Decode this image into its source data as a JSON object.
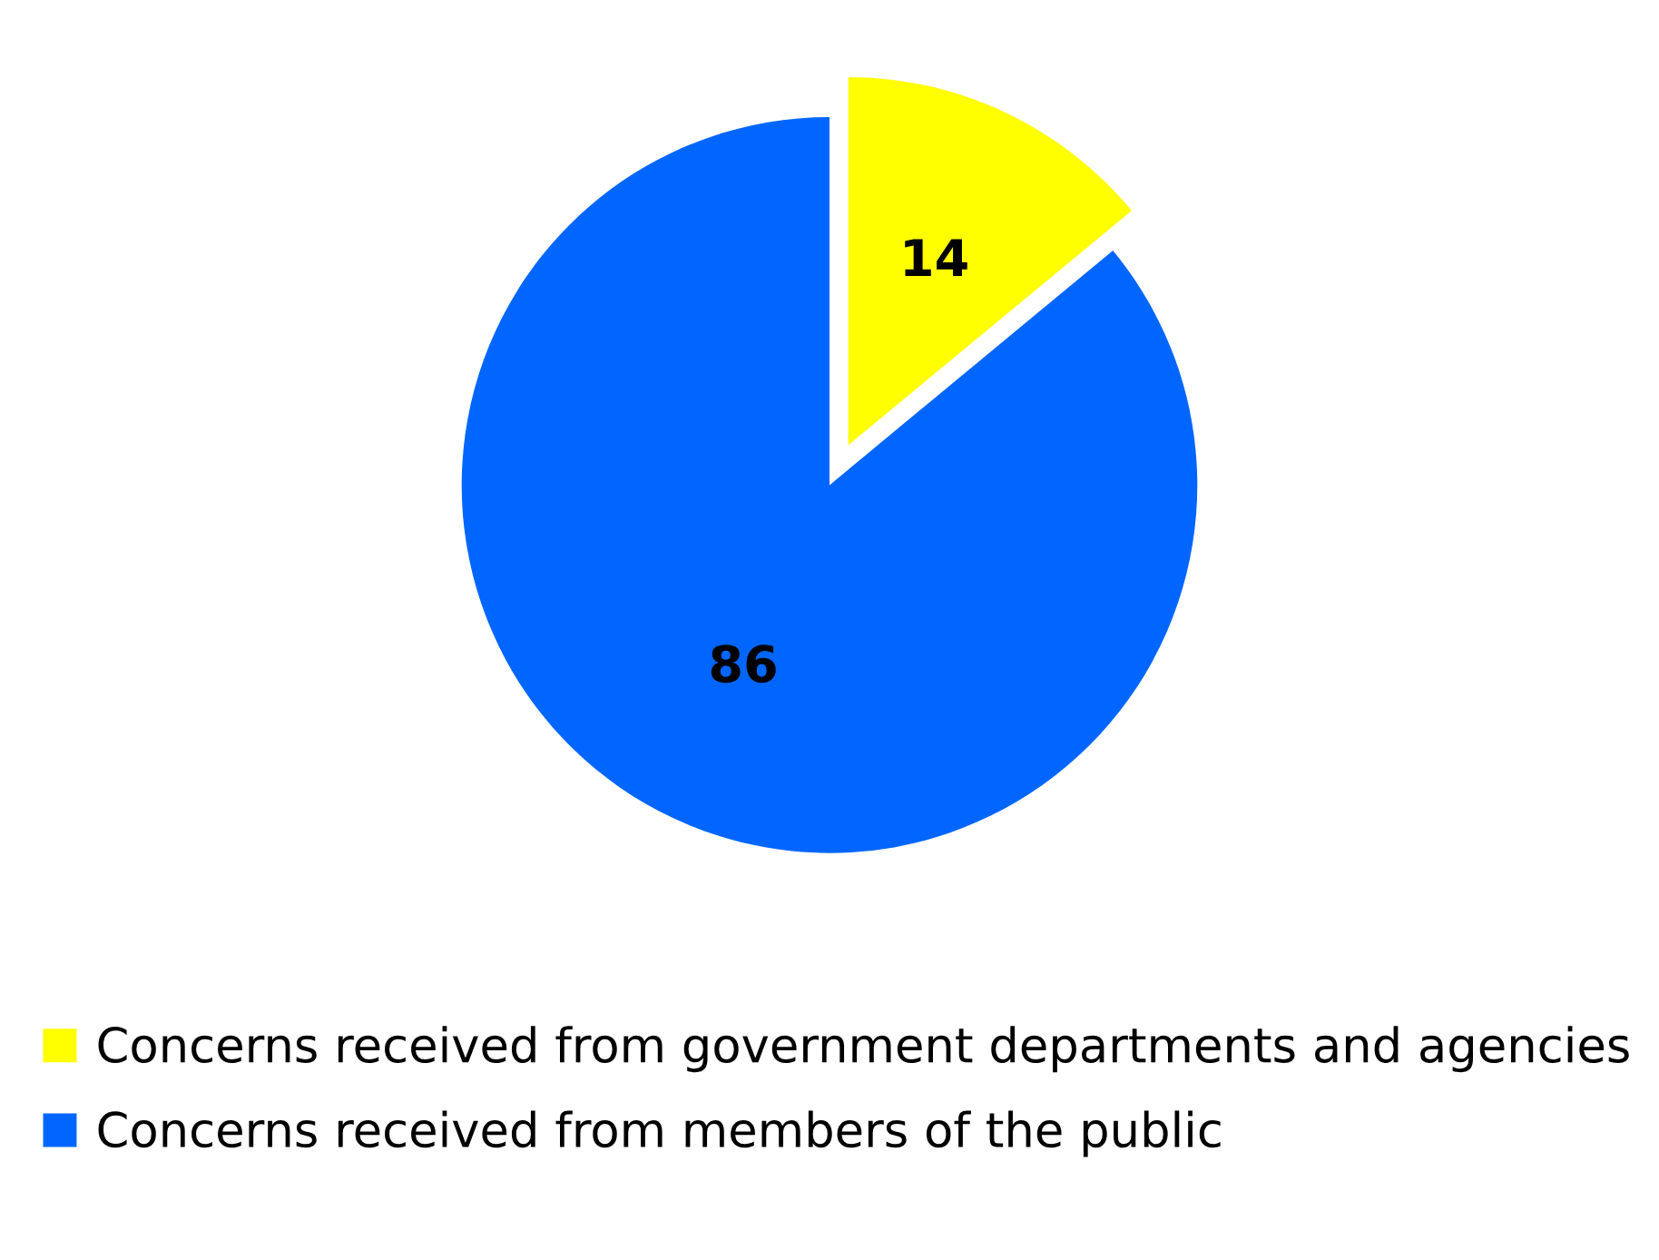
{
  "chart_data": {
    "type": "pie",
    "categories": [
      "Concerns received from government departments and agencies",
      "Concerns received from members of the public"
    ],
    "values": [
      14,
      86
    ],
    "colors": [
      "#ffff00",
      "#0066ff"
    ],
    "data_labels": true,
    "legend": "bottom"
  }
}
